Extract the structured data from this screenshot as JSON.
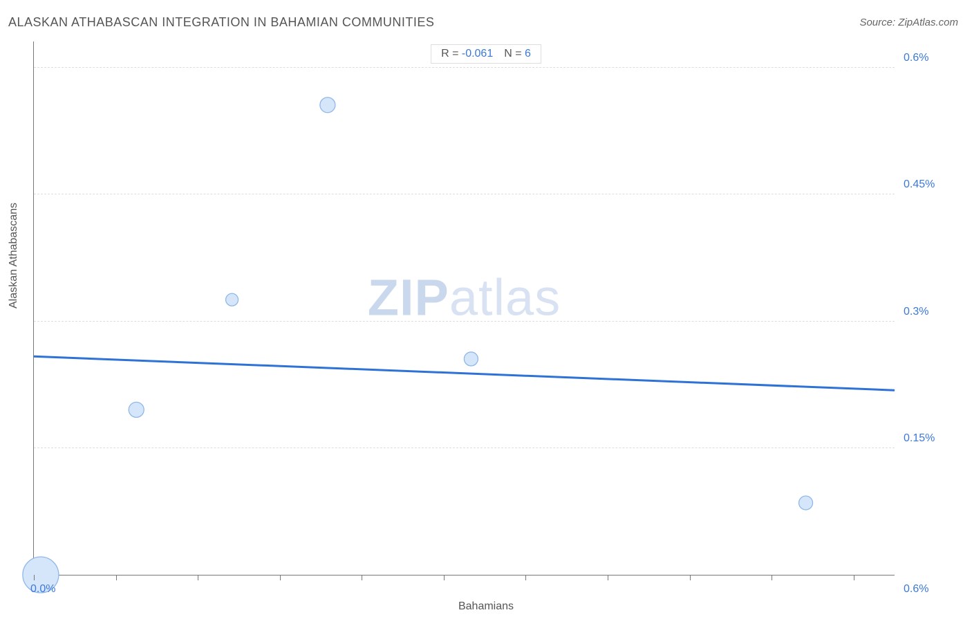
{
  "title": "ALASKAN ATHABASCAN INTEGRATION IN BAHAMIAN COMMUNITIES",
  "source": "Source: ZipAtlas.com",
  "watermark_a": "ZIP",
  "watermark_b": "atlas",
  "chart": {
    "type": "scatter",
    "xlabel": "Bahamians",
    "ylabel": "Alaskan Athabascans",
    "xlim": [
      0.0,
      0.63
    ],
    "ylim": [
      0.0,
      0.63
    ],
    "x_axis_labels": [
      {
        "pos": 0.0,
        "text": "0.0%"
      },
      {
        "pos": 0.6,
        "text": "0.6%"
      }
    ],
    "y_axis_labels": [
      {
        "pos": 0.15,
        "text": "0.15%"
      },
      {
        "pos": 0.3,
        "text": "0.3%"
      },
      {
        "pos": 0.45,
        "text": "0.45%"
      },
      {
        "pos": 0.6,
        "text": "0.6%"
      }
    ],
    "x_tick_positions": [
      0.0,
      0.06,
      0.12,
      0.18,
      0.24,
      0.3,
      0.36,
      0.42,
      0.48,
      0.54,
      0.6
    ],
    "points": [
      {
        "x": 0.005,
        "y": 0.0,
        "r": 26
      },
      {
        "x": 0.075,
        "y": 0.195,
        "r": 11
      },
      {
        "x": 0.145,
        "y": 0.325,
        "r": 9
      },
      {
        "x": 0.215,
        "y": 0.555,
        "r": 11
      },
      {
        "x": 0.32,
        "y": 0.255,
        "r": 10
      },
      {
        "x": 0.565,
        "y": 0.085,
        "r": 10
      }
    ],
    "regression": {
      "y_at_xmin": 0.258,
      "y_at_xmax": 0.218
    },
    "colors": {
      "point_fill": "#d6e6fa",
      "point_stroke": "#8fb7e8",
      "line": "#2f72d6",
      "grid": "#dddddd",
      "axis": "#777777",
      "label": "#3b78d8",
      "title": "#555555"
    },
    "line_width": 3,
    "point_stroke_width": 1.3
  },
  "legend": {
    "r_label": "R =",
    "r_value": "-0.061",
    "n_label": "N =",
    "n_value": "6"
  }
}
